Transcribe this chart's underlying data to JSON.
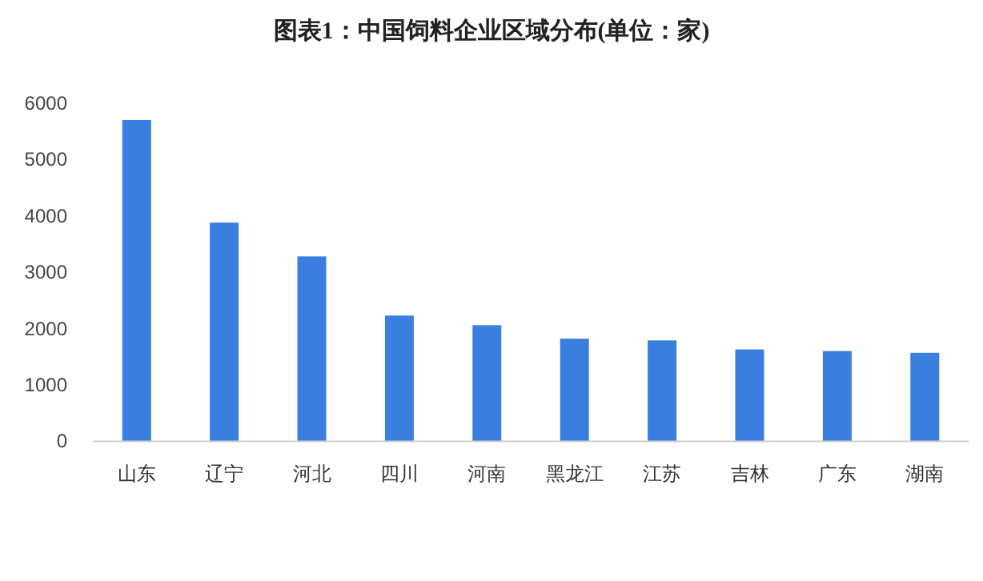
{
  "chart_data": {
    "type": "bar",
    "title": "图表1：中国饲料企业区域分布(单位：家)",
    "categories": [
      "山东",
      "辽宁",
      "河北",
      "四川",
      "河南",
      "黑龙江",
      "江苏",
      "吉林",
      "广东",
      "湖南"
    ],
    "values": [
      5700,
      3880,
      3280,
      2230,
      2060,
      1820,
      1790,
      1630,
      1600,
      1570
    ],
    "color": "#3a7fe0",
    "ylim": [
      0,
      6000
    ],
    "yticks": [
      0,
      1000,
      2000,
      3000,
      4000,
      5000,
      6000
    ],
    "grid": false
  }
}
